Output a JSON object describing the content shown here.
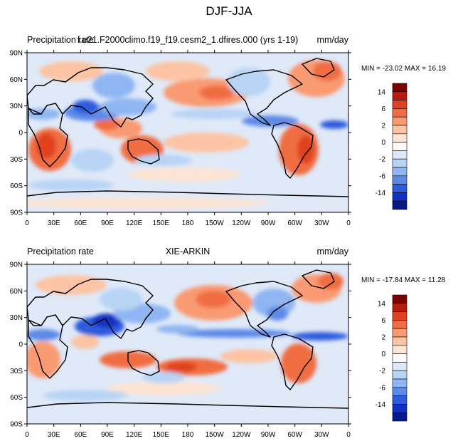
{
  "figure": {
    "title": "DJF-JJA"
  },
  "panels": [
    {
      "id": "model",
      "left_label": "Precipitation rate",
      "center_label": "f.e21.F2000climo.f19_f19.cesm2_1.dfires.000 (yrs 1-19)",
      "units": "mm/day",
      "minmax": "MIN = -23.02 MAX =  16.19"
    },
    {
      "id": "obs",
      "left_label": "Precipitation rate",
      "center_label": "XIE-ARKIN",
      "units": "mm/day",
      "minmax": "MIN = -17.84 MAX =  11.28"
    }
  ],
  "axes": {
    "lon_ticks": [
      "0",
      "30E",
      "60E",
      "90E",
      "120E",
      "150E",
      "180",
      "150W",
      "120W",
      "90W",
      "60W",
      "30W",
      "0"
    ],
    "lat_ticks": [
      "90N",
      "60N",
      "30N",
      "0",
      "30S",
      "60S",
      "90S"
    ]
  },
  "colorbar": {
    "labels": [
      "14",
      "6",
      "2",
      "0",
      "-2",
      "-6",
      "-14"
    ],
    "colors": [
      "#7f0000",
      "#b81c0d",
      "#e0421f",
      "#f06d43",
      "#f99a72",
      "#fcc4a4",
      "#fde4d4",
      "#fdf9f4",
      "#dbe9f8",
      "#b8d4f5",
      "#8fb6f2",
      "#5d8ae8",
      "#2f5cdc",
      "#1231c4",
      "#061b8a"
    ]
  },
  "palette": {
    "ocean_base": "#dfe9f8",
    "land_outline": "#000000"
  }
}
